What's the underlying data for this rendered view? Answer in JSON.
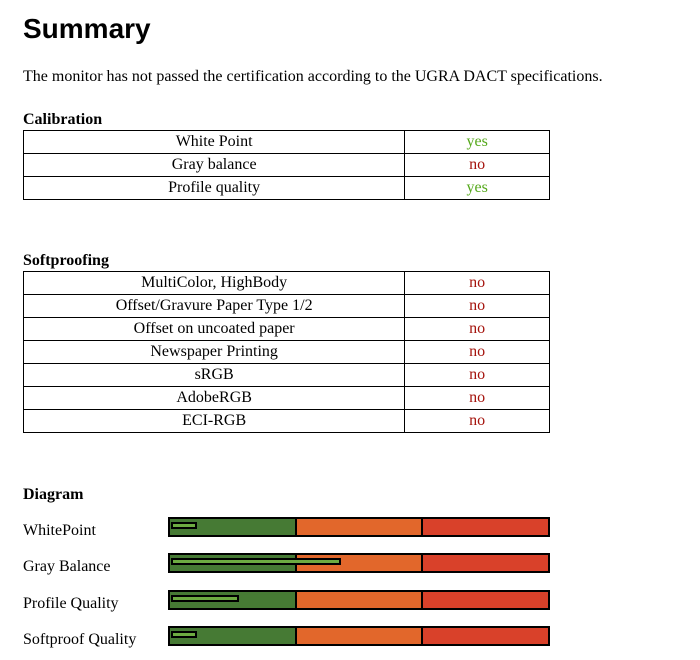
{
  "summary": {
    "title": "Summary",
    "statement": "The monitor has not passed the certification according to the UGRA DACT specifications."
  },
  "calibration": {
    "heading": "Calibration",
    "rows": [
      {
        "name": "White Point",
        "result": "yes"
      },
      {
        "name": "Gray balance",
        "result": "no"
      },
      {
        "name": "Profile quality",
        "result": "yes"
      }
    ]
  },
  "softproofing": {
    "heading": "Softproofing",
    "rows": [
      {
        "name": "MultiColor, HighBody",
        "result": "no"
      },
      {
        "name": "Offset/Gravure Paper Type 1/2",
        "result": "no"
      },
      {
        "name": "Offset on uncoated paper",
        "result": "no"
      },
      {
        "name": "Newspaper Printing",
        "result": "no"
      },
      {
        "name": "sRGB",
        "result": "no"
      },
      {
        "name": "AdobeRGB",
        "result": "no"
      },
      {
        "name": "ECI-RGB",
        "result": "no"
      }
    ]
  },
  "diagram": {
    "heading": "Diagram",
    "zone_colors": {
      "green": "#467a34",
      "orange": "#e2672b",
      "red": "#d9412a"
    },
    "level_color": "#6dab42",
    "items": [
      {
        "label": "WhitePoint",
        "level": 0.07
      },
      {
        "label": "Gray Balance",
        "level": 0.45
      },
      {
        "label": "Profile Quality",
        "level": 0.18
      },
      {
        "label": "Softproof Quality",
        "level": 0.07
      }
    ]
  },
  "colors": {
    "yes": "#55a81b",
    "no": "#a5140d"
  }
}
